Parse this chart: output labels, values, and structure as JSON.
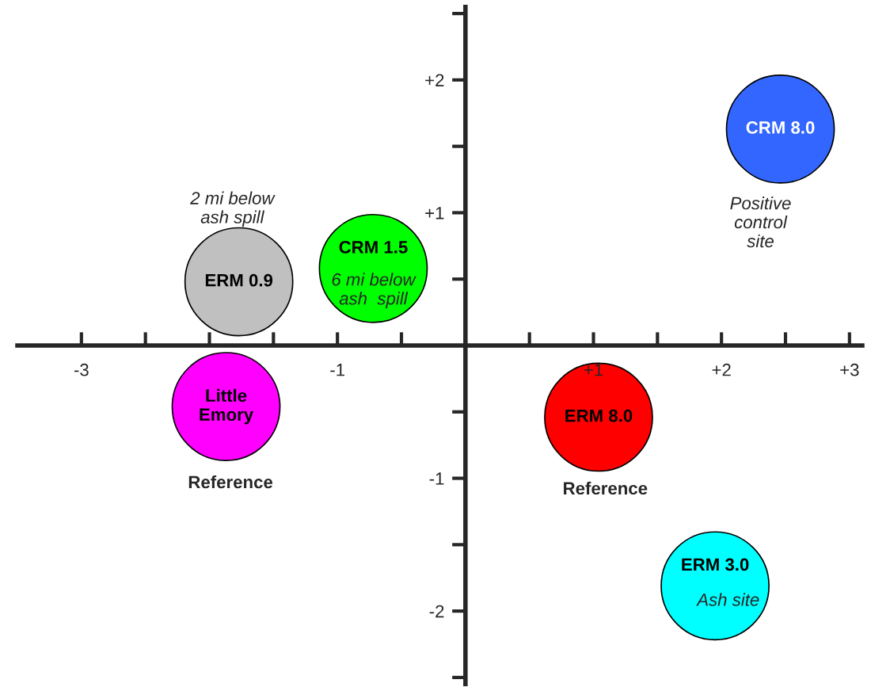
{
  "chart_data": {
    "type": "scatter",
    "series": [
      {
        "name": "ERM 0.9",
        "color": "#c0c0c0",
        "x": [
          -1.77
        ],
        "values": [
          0.48
        ]
      },
      {
        "name": "CRM 1.5",
        "color": "#00ff00",
        "x": [
          -0.72
        ],
        "values": [
          0.58
        ]
      },
      {
        "name": "CRM 8.0",
        "color": "#3366ff",
        "x": [
          2.46
        ],
        "values": [
          1.63
        ]
      },
      {
        "name": "Little\nEmory",
        "color": "#ff00ff",
        "x": [
          -1.87
        ],
        "values": [
          -0.46
        ]
      },
      {
        "name": "ERM 8.0",
        "color": "#ff0000",
        "x": [
          1.04
        ],
        "values": [
          -0.54
        ]
      },
      {
        "name": "ERM 3.0",
        "color": "#00ffff",
        "x": [
          1.95
        ],
        "values": [
          -1.81
        ]
      }
    ],
    "annotations": [
      "2 mi below\nash spill",
      "6 mi below\nash  spill",
      "Positive\ncontrol\nsite",
      "Reference",
      "Reference",
      "Ash site"
    ],
    "xlim": [
      -3.5,
      3.1
    ],
    "ylim": [
      -2.55,
      2.55
    ],
    "xticks": [
      -3,
      {
        "value": -2.5,
        "label": null
      },
      {
        "value": -2,
        "label": null
      },
      {
        "value": -1.5,
        "label": null
      },
      -1,
      {
        "value": -0.5,
        "label": null
      },
      {
        "value": 0.5,
        "label": null
      },
      {
        "value": 1,
        "label": "+1"
      },
      {
        "value": 1.5,
        "label": null
      },
      {
        "value": 2,
        "label": "+2"
      },
      {
        "value": 2.5,
        "label": null
      },
      {
        "value": 3,
        "label": "+3"
      }
    ],
    "yticks": [
      {
        "value": -2.5,
        "label": null
      },
      -2,
      {
        "value": -1.5,
        "label": null
      },
      -1,
      {
        "value": -0.5,
        "label": null
      },
      {
        "value": 0.5,
        "label": null
      },
      {
        "value": 1,
        "label": "+1"
      },
      {
        "value": 1.5,
        "label": null
      },
      {
        "value": 2,
        "label": "+2"
      },
      {
        "value": 2.5,
        "label": null
      }
    ],
    "marker": "circle",
    "grid": false,
    "legend": false
  }
}
